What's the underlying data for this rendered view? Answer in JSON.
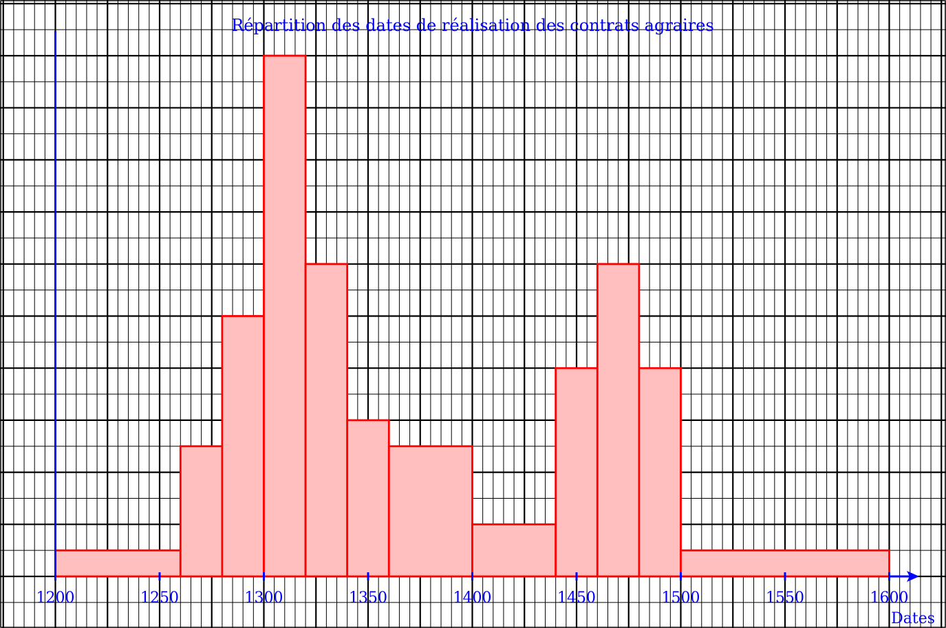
{
  "chart_data": {
    "type": "bar",
    "title": "Répartition des dates de réalisation des contrats agraires",
    "xlabel": "Dates",
    "ylabel": "",
    "xlim": [
      1200,
      1600
    ],
    "x_ticks": [
      "1200",
      "1250",
      "1300",
      "1350",
      "1400",
      "1450",
      "1500",
      "1550",
      "1600"
    ],
    "grid": true,
    "bins": [
      {
        "from": 1200,
        "to": 1260,
        "height": 1
      },
      {
        "from": 1260,
        "to": 1280,
        "height": 5
      },
      {
        "from": 1280,
        "to": 1300,
        "height": 10
      },
      {
        "from": 1300,
        "to": 1320,
        "height": 20
      },
      {
        "from": 1320,
        "to": 1340,
        "height": 12
      },
      {
        "from": 1340,
        "to": 1360,
        "height": 6
      },
      {
        "from": 1360,
        "to": 1400,
        "height": 5
      },
      {
        "from": 1400,
        "to": 1440,
        "height": 2
      },
      {
        "from": 1440,
        "to": 1460,
        "height": 8
      },
      {
        "from": 1460,
        "to": 1480,
        "height": 12
      },
      {
        "from": 1480,
        "to": 1500,
        "height": 8
      },
      {
        "from": 1500,
        "to": 1600,
        "height": 1
      }
    ],
    "colors": {
      "bar_fill": "#ffbfbf",
      "bar_stroke": "#ff0000",
      "axis": "#0000ff",
      "text": "#0000ff",
      "grid": "#000000"
    }
  }
}
